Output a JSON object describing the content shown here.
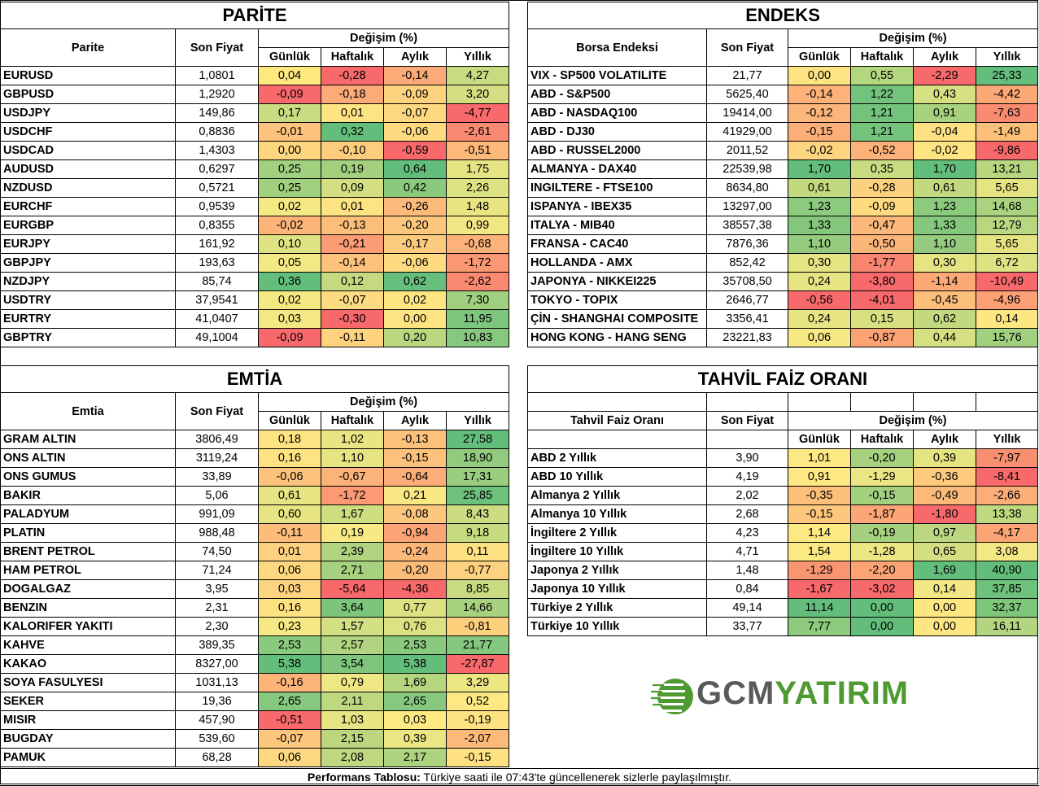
{
  "parite": {
    "title": "PARİTE",
    "col_name": "Parite",
    "col_price": "Son Fiyat",
    "col_change": "Değişim (%)",
    "sub": [
      "Günlük",
      "Haftalık",
      "Aylık",
      "Yıllık"
    ],
    "rows": [
      {
        "name": "EURUSD",
        "price": "1,0801",
        "vals": [
          "0,04",
          "-0,28",
          "-0,14",
          "4,27"
        ],
        "colors": [
          "#fde97e",
          "#f8696b",
          "#fcaa77",
          "#c7db80"
        ]
      },
      {
        "name": "GBPUSD",
        "price": "1,2920",
        "vals": [
          "-0,09",
          "-0,18",
          "-0,09",
          "3,20"
        ],
        "colors": [
          "#f8696b",
          "#fcaa77",
          "#fed380",
          "#d3df82"
        ]
      },
      {
        "name": "USDJPY",
        "price": "149,86",
        "vals": [
          "0,17",
          "0,01",
          "-0,07",
          "-4,77"
        ],
        "colors": [
          "#c9dc81",
          "#fee382",
          "#fed881",
          "#f8696b"
        ]
      },
      {
        "name": "USDCHF",
        "price": "0,8836",
        "vals": [
          "-0,01",
          "0,32",
          "-0,06",
          "-2,61"
        ],
        "colors": [
          "#fdc27d",
          "#63be7b",
          "#fedb81",
          "#f98970"
        ]
      },
      {
        "name": "USDCAD",
        "price": "1,4303",
        "vals": [
          "0,00",
          "-0,10",
          "-0,59",
          "-0,51"
        ],
        "colors": [
          "#fed680",
          "#fdcd7e",
          "#f8696b",
          "#fcb97a"
        ]
      },
      {
        "name": "AUDUSD",
        "price": "0,6297",
        "vals": [
          "0,25",
          "0,19",
          "0,64",
          "1,75"
        ],
        "colors": [
          "#a1d07e",
          "#a2d07f",
          "#63be7b",
          "#e5e483"
        ]
      },
      {
        "name": "NZDUSD",
        "price": "0,5721",
        "vals": [
          "0,25",
          "0,09",
          "0,42",
          "2,26"
        ],
        "colors": [
          "#a1d07e",
          "#d3df82",
          "#8bc97e",
          "#dde283"
        ]
      },
      {
        "name": "EURCHF",
        "price": "0,9539",
        "vals": [
          "0,02",
          "0,01",
          "-0,26",
          "1,48"
        ],
        "colors": [
          "#f5e984",
          "#fee382",
          "#fcbb7a",
          "#e9e583"
        ]
      },
      {
        "name": "EURGBP",
        "price": "0,8355",
        "vals": [
          "-0,02",
          "-0,13",
          "-0,20",
          "0,99"
        ],
        "colors": [
          "#fcb479",
          "#fcbf7b",
          "#fdc67d",
          "#f1e784"
        ]
      },
      {
        "name": "EURJPY",
        "price": "161,92",
        "vals": [
          "0,10",
          "-0,21",
          "-0,17",
          "-0,68"
        ],
        "colors": [
          "#dfe283",
          "#fc9c75",
          "#fdcb7e",
          "#fcb279"
        ]
      },
      {
        "name": "GBPJPY",
        "price": "193,63",
        "vals": [
          "0,05",
          "-0,14",
          "-0,06",
          "-1,72"
        ],
        "colors": [
          "#f2e884",
          "#fdc37c",
          "#fedb81",
          "#fa9873"
        ]
      },
      {
        "name": "NZDJPY",
        "price": "85,74",
        "vals": [
          "0,36",
          "0,12",
          "0,62",
          "-2,62"
        ],
        "colors": [
          "#63be7b",
          "#c5da80",
          "#66bf7c",
          "#f98970"
        ]
      },
      {
        "name": "USDTRY",
        "price": "37,9541",
        "vals": [
          "0,02",
          "-0,07",
          "0,02",
          "7,30"
        ],
        "colors": [
          "#f5e984",
          "#fedb81",
          "#fee683",
          "#a0d07f"
        ]
      },
      {
        "name": "EURTRY",
        "price": "41,0407",
        "vals": [
          "0,03",
          "-0,30",
          "0,00",
          "11,95"
        ],
        "colors": [
          "#f3e884",
          "#f8696b",
          "#fee382",
          "#7ec57d"
        ]
      },
      {
        "name": "GBPTRY",
        "price": "49,1004",
        "vals": [
          "-0,09",
          "-0,11",
          "0,20",
          "10,83"
        ],
        "colors": [
          "#f8696b",
          "#fed27f",
          "#b8d77f",
          "#86c87d"
        ]
      }
    ]
  },
  "endeks": {
    "title": "ENDEKS",
    "col_name": "Borsa Endeksi",
    "col_price": "Son Fiyat",
    "col_change": "Değişim (%)",
    "sub": [
      "Günlük",
      "Haftalık",
      "Aylık",
      "Yıllık"
    ],
    "rows": [
      {
        "name": "VIX  - SP500 VOLATILITE",
        "price": "21,77",
        "vals": [
          "0,00",
          "0,55",
          "-2,29",
          "25,33"
        ],
        "colors": [
          "#fde381",
          "#b4d67f",
          "#f8696b",
          "#63be7b"
        ]
      },
      {
        "name": "ABD - S&P500",
        "price": "5625,40",
        "vals": [
          "-0,14",
          "1,22",
          "0,43",
          "-4,42"
        ],
        "colors": [
          "#fcb279",
          "#73c37c",
          "#d6e082",
          "#fba976"
        ]
      },
      {
        "name": "ABD - NASDAQ100",
        "price": "19414,00",
        "vals": [
          "-0,12",
          "1,21",
          "0,91",
          "-7,63"
        ],
        "colors": [
          "#fcb57a",
          "#73c37c",
          "#a9d27f",
          "#f98b70"
        ]
      },
      {
        "name": "ABD - DJ30",
        "price": "41929,00",
        "vals": [
          "-0,15",
          "1,21",
          "-0,04",
          "-1,49"
        ],
        "colors": [
          "#fcaf79",
          "#73c37c",
          "#fde182",
          "#fcc07b"
        ]
      },
      {
        "name": "ABD - RUSSEL2000",
        "price": "2011,52",
        "vals": [
          "-0,02",
          "-0,52",
          "-0,02",
          "-9,86"
        ],
        "colors": [
          "#fdd47f",
          "#fcb279",
          "#fee482",
          "#f8696b"
        ]
      },
      {
        "name": "ALMANYA - DAX40",
        "price": "22539,98",
        "vals": [
          "1,70",
          "0,35",
          "1,70",
          "13,21"
        ],
        "colors": [
          "#63be7b",
          "#c9dc81",
          "#63be7b",
          "#b6d67f"
        ]
      },
      {
        "name": "INGILTERE - FTSE100",
        "price": "8634,80",
        "vals": [
          "0,61",
          "-0,28",
          "0,61",
          "5,65"
        ],
        "colors": [
          "#c3d980",
          "#fbd07e",
          "#c3d980",
          "#e4e482"
        ]
      },
      {
        "name": "ISPANYA - IBEX35",
        "price": "13297,00",
        "vals": [
          "1,23",
          "-0,09",
          "1,23",
          "14,68"
        ],
        "colors": [
          "#8ccb7e",
          "#feda80",
          "#8ccb7e",
          "#aad27f"
        ]
      },
      {
        "name": "ITALYA - MIB40",
        "price": "38557,38",
        "vals": [
          "1,33",
          "-0,47",
          "1,33",
          "12,79"
        ],
        "colors": [
          "#85c87d",
          "#fcb87a",
          "#85c87d",
          "#b9d780"
        ]
      },
      {
        "name": "FRANSA - CAC40",
        "price": "7876,36",
        "vals": [
          "1,10",
          "-0,50",
          "1,10",
          "5,65"
        ],
        "colors": [
          "#95cb7e",
          "#fcb579",
          "#95cb7e",
          "#e4e482"
        ]
      },
      {
        "name": "HOLLANDA - AMX",
        "price": "852,42",
        "vals": [
          "0,30",
          "-1,77",
          "0,30",
          "6,72"
        ],
        "colors": [
          "#e4e482",
          "#f98570",
          "#e4e482",
          "#dde283"
        ]
      },
      {
        "name": "JAPONYA - NIKKEI225",
        "price": "35708,50",
        "vals": [
          "0,24",
          "-3,80",
          "-1,14",
          "-10,49"
        ],
        "colors": [
          "#e7e483",
          "#f8696b",
          "#fca977",
          "#f8696b"
        ]
      },
      {
        "name": "TOKYO - TOPIX",
        "price": "2646,77",
        "vals": [
          "-0,56",
          "-4,01",
          "-0,45",
          "-4,96"
        ],
        "colors": [
          "#f8696b",
          "#f8696b",
          "#fcbf7b",
          "#fba175"
        ]
      },
      {
        "name": "ÇİN - SHANGHAI COMPOSITE",
        "price": "3356,41",
        "vals": [
          "0,24",
          "0,15",
          "0,62",
          "0,14"
        ],
        "colors": [
          "#e7e483",
          "#d8e082",
          "#c3d980",
          "#fee683"
        ]
      },
      {
        "name": "HONG KONG - HANG SENG",
        "price": "23221,83",
        "vals": [
          "0,06",
          "-0,87",
          "0,44",
          "15,76"
        ],
        "colors": [
          "#f7e984",
          "#fca376",
          "#d6e082",
          "#a1d07f"
        ]
      }
    ]
  },
  "emtia": {
    "title": "EMTİA",
    "col_name": "Emtia",
    "col_price": "Son Fiyat",
    "col_change": "Değişim (%)",
    "sub": [
      "Günlük",
      "Haftalık",
      "Aylık",
      "Yıllık"
    ],
    "rows": [
      {
        "name": "GRAM ALTIN",
        "price": "3806,49",
        "vals": [
          "0,18",
          "1,02",
          "-0,13",
          "27,58"
        ],
        "colors": [
          "#fde382",
          "#e9e583",
          "#fcc27c",
          "#63be7b"
        ]
      },
      {
        "name": "ONS ALTIN",
        "price": "3119,24",
        "vals": [
          "0,16",
          "1,10",
          "-0,15",
          "18,90"
        ],
        "colors": [
          "#fde382",
          "#e6e483",
          "#fcc17b",
          "#92cb7e"
        ]
      },
      {
        "name": "ONS GUMUS",
        "price": "33,89",
        "vals": [
          "-0,06",
          "-0,67",
          "-0,64",
          "17,31"
        ],
        "colors": [
          "#fcc37c",
          "#fcb379",
          "#fcae78",
          "#9ace7e"
        ]
      },
      {
        "name": "BAKIR",
        "price": "5,06",
        "vals": [
          "0,61",
          "-1,72",
          "0,21",
          "25,85"
        ],
        "colors": [
          "#e7e483",
          "#fb9a74",
          "#f9e884",
          "#6dc17c"
        ]
      },
      {
        "name": "PALADYUM",
        "price": "991,09",
        "vals": [
          "0,60",
          "1,67",
          "-0,08",
          "8,43"
        ],
        "colors": [
          "#e7e483",
          "#cfdd81",
          "#fdc77d",
          "#cbdc81"
        ]
      },
      {
        "name": "PLATIN",
        "price": "988,48",
        "vals": [
          "-0,11",
          "0,19",
          "-0,94",
          "9,18"
        ],
        "colors": [
          "#fcbc7a",
          "#f9e984",
          "#fba475",
          "#c6da80"
        ]
      },
      {
        "name": "BRENT PETROL",
        "price": "74,50",
        "vals": [
          "0,01",
          "2,39",
          "-0,24",
          "0,11"
        ],
        "colors": [
          "#fdd17f",
          "#b0d47f",
          "#fcb879",
          "#fee182"
        ]
      },
      {
        "name": "HAM PETROL",
        "price": "71,24",
        "vals": [
          "0,06",
          "2,71",
          "-0,20",
          "-0,77"
        ],
        "colors": [
          "#fdd880",
          "#a6d17f",
          "#fcbc7a",
          "#fdd17f"
        ]
      },
      {
        "name": "DOGALGAZ",
        "price": "3,95",
        "vals": [
          "0,03",
          "-5,64",
          "-4,36",
          "8,85"
        ],
        "colors": [
          "#fdd47f",
          "#f8696b",
          "#f8696b",
          "#c8db80"
        ]
      },
      {
        "name": "BENZIN",
        "price": "2,31",
        "vals": [
          "0,16",
          "3,64",
          "0,77",
          "14,66"
        ],
        "colors": [
          "#fde282",
          "#7dc47d",
          "#dce182",
          "#a8d27f"
        ]
      },
      {
        "name": "KALORIFER YAKITI",
        "price": "2,30",
        "vals": [
          "0,23",
          "1,57",
          "0,76",
          "-0,81"
        ],
        "colors": [
          "#f6e884",
          "#d2df82",
          "#dce182",
          "#fdd07e"
        ]
      },
      {
        "name": "KAHVE",
        "price": "389,35",
        "vals": [
          "2,53",
          "2,57",
          "2,53",
          "21,77"
        ],
        "colors": [
          "#8aca7e",
          "#b0d47f",
          "#8aca7e",
          "#85c77d"
        ]
      },
      {
        "name": "KAKAO",
        "price": "8327,00",
        "vals": [
          "5,38",
          "3,54",
          "5,38",
          "-27,87"
        ],
        "colors": [
          "#63be7b",
          "#80c57d",
          "#63be7b",
          "#f8696b"
        ]
      },
      {
        "name": "SOYA FASULYESI",
        "price": "1031,13",
        "vals": [
          "-0,16",
          "0,79",
          "1,69",
          "3,29"
        ],
        "colors": [
          "#fcb479",
          "#eee784",
          "#b6d57f",
          "#ecE683"
        ]
      },
      {
        "name": "SEKER",
        "price": "19,36",
        "vals": [
          "2,65",
          "2,11",
          "2,65",
          "0,52"
        ],
        "colors": [
          "#86c87d",
          "#bed880",
          "#86c87d",
          "#fde883"
        ]
      },
      {
        "name": "MISIR",
        "price": "457,90",
        "vals": [
          "-0,51",
          "1,03",
          "0,03",
          "-0,19"
        ],
        "colors": [
          "#f8696b",
          "#e7e483",
          "#feea83",
          "#fde282"
        ]
      },
      {
        "name": "BUGDAY",
        "price": "539,60",
        "vals": [
          "-0,07",
          "2,15",
          "0,39",
          "-2,07"
        ],
        "colors": [
          "#fdc67d",
          "#bcd780",
          "#ebe683",
          "#fcba7a"
        ]
      },
      {
        "name": "PAMUK",
        "price": "68,28",
        "vals": [
          "0,06",
          "2,08",
          "2,17",
          "-0,15"
        ],
        "colors": [
          "#fdd880",
          "#bfd880",
          "#aed37f",
          "#fee282"
        ]
      }
    ]
  },
  "tahvil": {
    "title": "TAHVİL FAİZ ORANI",
    "col_name": "Tahvil Faiz Oranı",
    "col_price": "Son Fiyat",
    "col_change": "Değişim (%)",
    "sub": [
      "Günlük",
      "Haftalık",
      "Aylık",
      "Yıllık"
    ],
    "rows": [
      {
        "name": "ABD 2 Yıllık",
        "price": "3,90",
        "vals": [
          "1,01",
          "-0,20",
          "0,39",
          "-7,97"
        ],
        "colors": [
          "#fde983",
          "#a6d17f",
          "#e4e483",
          "#f98f71"
        ]
      },
      {
        "name": "ABD 10 Yıllık",
        "price": "4,19",
        "vals": [
          "0,91",
          "-1,29",
          "-0,36",
          "-8,41"
        ],
        "colors": [
          "#fde883",
          "#ebe683",
          "#fdca7e",
          "#f8696b"
        ]
      },
      {
        "name": "Almanya 2 Yıllık",
        "price": "2,02",
        "vals": [
          "-0,35",
          "-0,15",
          "-0,49",
          "-2,66"
        ],
        "colors": [
          "#fcc07b",
          "#a3d07f",
          "#fcba7a",
          "#fcae78"
        ]
      },
      {
        "name": "Almanya 10 Yıllık",
        "price": "2,68",
        "vals": [
          "-0,15",
          "-1,87",
          "-1,80",
          "13,38"
        ],
        "colors": [
          "#fdc87d",
          "#fca576",
          "#f8696b",
          "#c0d980"
        ]
      },
      {
        "name": "İngiltere 2 Yıllık",
        "price": "4,23",
        "vals": [
          "1,14",
          "-0,19",
          "0,97",
          "-4,17"
        ],
        "colors": [
          "#fde983",
          "#a4d07f",
          "#bcd780",
          "#fba475"
        ]
      },
      {
        "name": "İngiltere 10 Yıllık",
        "price": "4,71",
        "vals": [
          "1,54",
          "-1,28",
          "0,65",
          "3,08"
        ],
        "colors": [
          "#fbe983",
          "#ece683",
          "#d3df82",
          "#f4e884"
        ]
      },
      {
        "name": "Japonya 2 Yıllık",
        "price": "1,48",
        "vals": [
          "-1,29",
          "-2,20",
          "1,69",
          "40,90"
        ],
        "colors": [
          "#f99672",
          "#fba375",
          "#63be7b",
          "#63be7b"
        ]
      },
      {
        "name": "Japonya 10 Yıllık",
        "price": "0,84",
        "vals": [
          "-1,67",
          "-3,02",
          "0,14",
          "37,85"
        ],
        "colors": [
          "#f8696b",
          "#f8696b",
          "#f2e784",
          "#6fc27c"
        ]
      },
      {
        "name": "Türkiye 2 Yıllık",
        "price": "49,14",
        "vals": [
          "11,14",
          "0,00",
          "0,00",
          "32,37"
        ],
        "colors": [
          "#63be7b",
          "#63be7b",
          "#fee683",
          "#7fc67d"
        ]
      },
      {
        "name": "Türkiye 10 Yıllık",
        "price": "33,77",
        "vals": [
          "7,77",
          "0,00",
          "0,00",
          "16,11"
        ],
        "colors": [
          "#8ccb7e",
          "#63be7b",
          "#fee683",
          "#b3d580"
        ]
      }
    ]
  },
  "logo": {
    "part1": "GCM",
    "part2": "YATIRIM",
    "green": "#4e9a30",
    "gray": "#5a5a5a"
  },
  "footer": {
    "bold": "Performans Tablosu:",
    "text": " Türkiye saati ile 07:43'te güncellenerek sizlerle paylaşılmıştır."
  }
}
